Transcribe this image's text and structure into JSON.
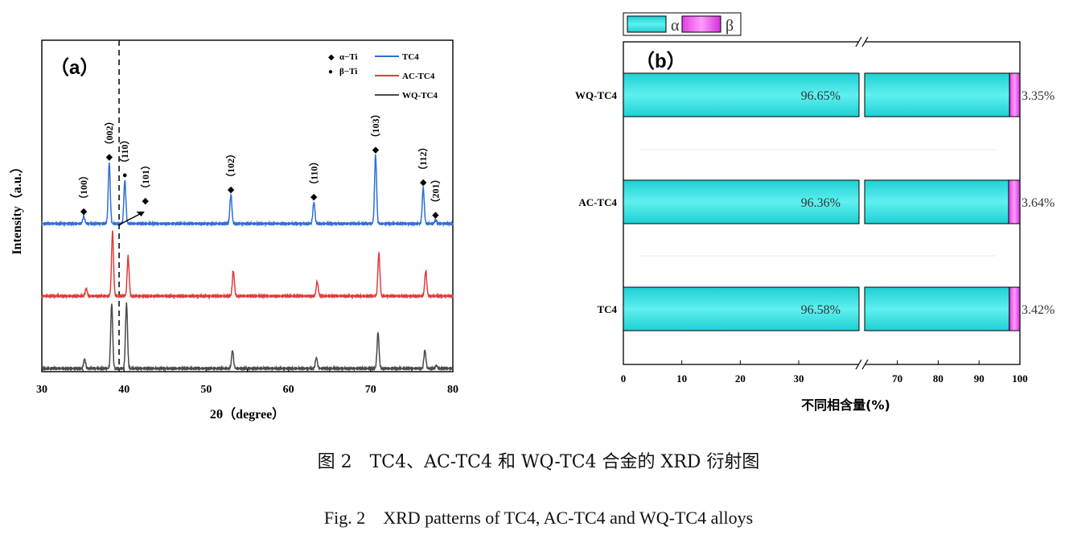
{
  "chart_data": [
    {
      "type": "line",
      "panel_label": "（a）",
      "xlabel": "2θ（degree）",
      "ylabel": "Intensity（a.u.）",
      "xlim": [
        30,
        80
      ],
      "xticks": [
        "30",
        "40",
        "50",
        "60",
        "70",
        "80"
      ],
      "dashed_line_x": 39.4,
      "legend": {
        "phase_markers": [
          {
            "symbol": "◆",
            "label": "α−Ti"
          },
          {
            "symbol": "●",
            "label": "β−Ti"
          }
        ],
        "series": [
          {
            "name": "TC4",
            "color": "#2f6fd6"
          },
          {
            "name": "AC-TC4",
            "color": "#e03c3c"
          },
          {
            "name": "WQ-TC4",
            "color": "#4a4a4a"
          }
        ]
      },
      "series": [
        {
          "name": "TC4",
          "color": "#2f6fd6",
          "offset": 2.0,
          "peaks": [
            {
              "x": 35.1,
              "h": 0.1
            },
            {
              "x": 38.2,
              "h": 0.85
            },
            {
              "x": 40.1,
              "h": 0.6
            },
            {
              "x": 53.0,
              "h": 0.4
            },
            {
              "x": 63.1,
              "h": 0.3
            },
            {
              "x": 70.6,
              "h": 0.95
            },
            {
              "x": 76.4,
              "h": 0.5
            },
            {
              "x": 77.9,
              "h": 0.05
            }
          ]
        },
        {
          "name": "AC-TC4",
          "color": "#e03c3c",
          "offset": 1.0,
          "peaks": [
            {
              "x": 35.4,
              "h": 0.1
            },
            {
              "x": 38.6,
              "h": 0.9
            },
            {
              "x": 40.5,
              "h": 0.55
            },
            {
              "x": 53.3,
              "h": 0.35
            },
            {
              "x": 63.5,
              "h": 0.2
            },
            {
              "x": 71.0,
              "h": 0.6
            },
            {
              "x": 76.7,
              "h": 0.35
            }
          ]
        },
        {
          "name": "WQ-TC4",
          "color": "#4a4a4a",
          "offset": 0.0,
          "peaks": [
            {
              "x": 35.2,
              "h": 0.13
            },
            {
              "x": 38.5,
              "h": 0.9
            },
            {
              "x": 40.3,
              "h": 0.9
            },
            {
              "x": 53.2,
              "h": 0.25
            },
            {
              "x": 63.4,
              "h": 0.15
            },
            {
              "x": 70.9,
              "h": 0.5
            },
            {
              "x": 76.6,
              "h": 0.25
            },
            {
              "x": 78.0,
              "h": 0.04
            }
          ]
        }
      ],
      "peak_labels": [
        {
          "x": 35.1,
          "symbol": "◆",
          "label": "（100）"
        },
        {
          "x": 38.2,
          "symbol": "◆",
          "label": "（002）"
        },
        {
          "x": 40.1,
          "symbol": "●",
          "label": "（110）"
        },
        {
          "x": 42.6,
          "symbol": "◆",
          "label": "（101）"
        },
        {
          "x": 53.0,
          "symbol": "◆",
          "label": "（102）"
        },
        {
          "x": 63.1,
          "symbol": "◆",
          "label": "（110）"
        },
        {
          "x": 70.6,
          "symbol": "◆",
          "label": "（103）"
        },
        {
          "x": 76.4,
          "symbol": "◆",
          "label": "（112）"
        },
        {
          "x": 77.9,
          "symbol": "◆",
          "label": "（201）"
        }
      ]
    },
    {
      "type": "bar",
      "orientation": "horizontal",
      "stacked": true,
      "panel_label": "（b）",
      "xlabel": "不同相含量(%)",
      "categories": [
        "WQ-TC4",
        "AC-TC4",
        "TC4"
      ],
      "axis_break": [
        35,
        65
      ],
      "xticks": [
        "0",
        "10",
        "20",
        "30",
        "70",
        "80",
        "90",
        "100"
      ],
      "xlim": [
        0,
        100
      ],
      "legend": [
        {
          "name": "α",
          "color": "#2ad4d6"
        },
        {
          "name": "β",
          "color": "#e83ce8"
        }
      ],
      "series": [
        {
          "name": "α",
          "color": "#2ad4d6",
          "values": [
            96.65,
            96.36,
            96.58
          ],
          "labels": [
            "96.65%",
            "96.36%",
            "96.58%"
          ]
        },
        {
          "name": "β",
          "color": "#e83ce8",
          "values": [
            3.35,
            3.64,
            3.42
          ],
          "labels": [
            "3.35%",
            "3.64%",
            "3.42%"
          ]
        }
      ]
    }
  ],
  "captions": {
    "cn": "图 2　TC4、AC-TC4 和 WQ-TC4 合金的 XRD 衍射图",
    "en": "Fig. 2　XRD patterns of TC4, AC-TC4 and WQ-TC4 alloys"
  }
}
